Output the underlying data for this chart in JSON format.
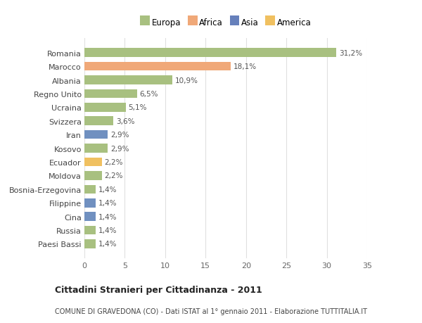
{
  "categories": [
    "Paesi Bassi",
    "Russia",
    "Cina",
    "Filippine",
    "Bosnia-Erzegovina",
    "Moldova",
    "Ecuador",
    "Kosovo",
    "Iran",
    "Svizzera",
    "Ucraina",
    "Regno Unito",
    "Albania",
    "Marocco",
    "Romania"
  ],
  "values": [
    1.4,
    1.4,
    1.4,
    1.4,
    1.4,
    2.2,
    2.2,
    2.9,
    2.9,
    3.6,
    5.1,
    6.5,
    10.9,
    18.1,
    31.2
  ],
  "labels": [
    "1,4%",
    "1,4%",
    "1,4%",
    "1,4%",
    "1,4%",
    "2,2%",
    "2,2%",
    "2,9%",
    "2,9%",
    "3,6%",
    "5,1%",
    "6,5%",
    "10,9%",
    "18,1%",
    "31,2%"
  ],
  "colors": [
    "#a8c080",
    "#a8c080",
    "#7090c0",
    "#7090c0",
    "#a8c080",
    "#a8c080",
    "#f0c060",
    "#a8c080",
    "#7090c0",
    "#a8c080",
    "#a8c080",
    "#a8c080",
    "#a8c080",
    "#f0a878",
    "#a8c080"
  ],
  "legend_labels": [
    "Europa",
    "Africa",
    "Asia",
    "America"
  ],
  "legend_colors": [
    "#a8c080",
    "#f0a878",
    "#6680bb",
    "#f0c060"
  ],
  "title": "Cittadini Stranieri per Cittadinanza - 2011",
  "subtitle": "COMUNE DI GRAVEDONA (CO) - Dati ISTAT al 1° gennaio 2011 - Elaborazione TUTTITALIA.IT",
  "xlim": [
    0,
    35
  ],
  "xticks": [
    0,
    5,
    10,
    15,
    20,
    25,
    30,
    35
  ],
  "background_color": "#ffffff",
  "grid_color": "#e0e0e0",
  "bar_height": 0.65
}
